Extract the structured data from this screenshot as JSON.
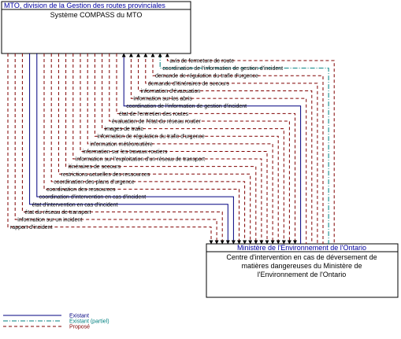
{
  "top_box": {
    "owner": "MTO, division de la Gestion des routes provinciales",
    "name": "Système COMPASS du MTO"
  },
  "bottom_box": {
    "owner": "Ministère de l'Environnement de l'Ontario",
    "name_lines": [
      "Centre d'intervention en cas de déversement de",
      "matières dangereuses du Ministère de",
      "l'Environnement de l'Ontario"
    ]
  },
  "flows": [
    {
      "label": "avis de fermeture de route",
      "direction": "up",
      "status": "planned"
    },
    {
      "label": "coordination de l'information de gestion d'incident",
      "direction": "up",
      "status": "partial"
    },
    {
      "label": "demande de régulation du trafic d'urgence",
      "direction": "up",
      "status": "planned"
    },
    {
      "label": "demande d'itinéraires de secours",
      "direction": "up",
      "status": "planned"
    },
    {
      "label": "information d'évacuation",
      "direction": "up",
      "status": "planned"
    },
    {
      "label": "information sur les abris",
      "direction": "up",
      "status": "planned"
    },
    {
      "label": "coordination de l'information de gestion d'incident",
      "direction": "up",
      "status": "existing"
    },
    {
      "label": "état de l'entretien des routes",
      "direction": "down",
      "status": "planned"
    },
    {
      "label": "évaluation de l'état du réseau routier",
      "direction": "down",
      "status": "planned"
    },
    {
      "label": "images de trafic",
      "direction": "down",
      "status": "planned"
    },
    {
      "label": "information de régulation du trafic d'urgence",
      "direction": "down",
      "status": "planned"
    },
    {
      "label": "information météoroutière",
      "direction": "down",
      "status": "planned"
    },
    {
      "label": "information sur les travaux routiers",
      "direction": "down",
      "status": "planned"
    },
    {
      "label": "information sur l'exploitation d'un réseau de transport",
      "direction": "down",
      "status": "planned"
    },
    {
      "label": "itinéraires de secours",
      "direction": "down",
      "status": "planned"
    },
    {
      "label": "restrictions actuelles des ressources",
      "direction": "down",
      "status": "planned"
    },
    {
      "label": "coordination des plans d'urgence",
      "direction": "down",
      "status": "planned"
    },
    {
      "label": "coordination des ressources",
      "direction": "down",
      "status": "planned"
    },
    {
      "label": "coordination d'intervention en cas d'incident",
      "direction": "down",
      "status": "existing"
    },
    {
      "label": "état d'intervention en cas d'incident",
      "direction": "down",
      "status": "existing"
    },
    {
      "label": "état du réseau de transport",
      "direction": "down",
      "status": "planned"
    },
    {
      "label": "information sur un incident",
      "direction": "down",
      "status": "planned"
    },
    {
      "label": "rapport d'incident",
      "direction": "down",
      "status": "planned"
    }
  ],
  "legend": [
    {
      "status": "existing",
      "label": "Existant"
    },
    {
      "status": "partial",
      "label": "Existant (partiel)"
    },
    {
      "status": "planned",
      "label": "Proposé"
    }
  ],
  "colors": {
    "existing": "#000080",
    "partial": "#008080",
    "planned": "#800000",
    "box_title": "#0000a0",
    "box_border": "#000000"
  }
}
